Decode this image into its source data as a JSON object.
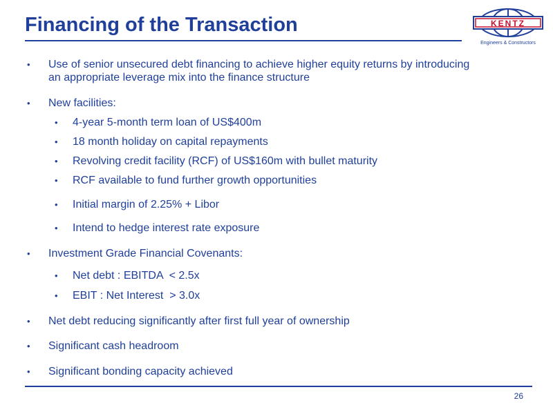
{
  "slide": {
    "title": "Financing of the Transaction",
    "page_number": "26",
    "accent_color": "#1f3f9a"
  },
  "logo": {
    "text": "KENTZ",
    "tagline": "Engineers & Constructors"
  },
  "bullets": {
    "bullet_glyph": "•",
    "b1_line1": "Use of senior unsecured debt financing to achieve higher equity returns by introducing",
    "b1_line2": "an appropriate leverage mix into the finance structure",
    "b2": "New facilities:",
    "b2_1": "4-year 5-month term loan of US$400m",
    "b2_2": "18 month holiday on capital repayments",
    "b2_3": "Revolving credit facility (RCF) of US$160m with bullet maturity",
    "b2_4": "RCF available to fund further growth opportunities",
    "b2_5": "Initial margin of 2.25% + Libor",
    "b2_6": "Intend to hedge interest rate exposure",
    "b3": "Investment Grade Financial Covenants:",
    "b3_1": "Net debt : EBITDA  < 2.5x",
    "b3_2": "EBIT : Net Interest  > 3.0x",
    "b4": "Net debt reducing significantly after first full year of ownership",
    "b5": "Significant cash headroom",
    "b6": "Significant bonding capacity achieved"
  }
}
